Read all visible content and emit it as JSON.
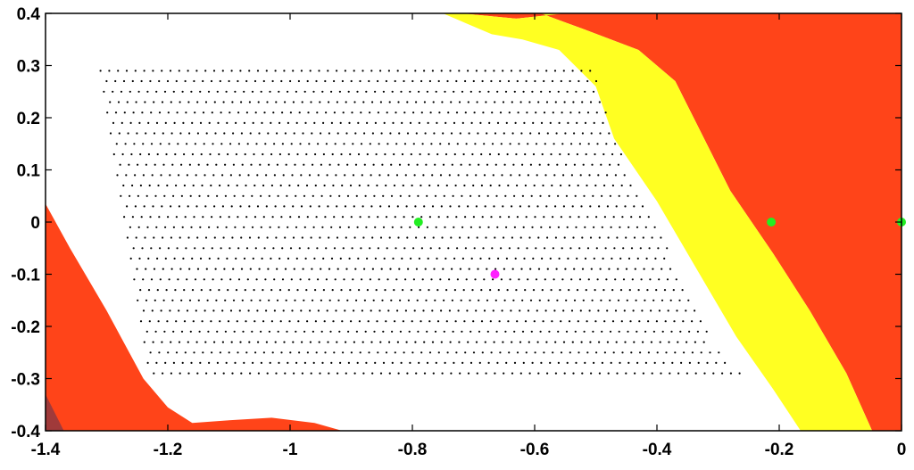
{
  "chart_data": {
    "type": "scatter",
    "title": "",
    "xlabel": "",
    "ylabel": "",
    "xlim": [
      -1.4,
      0
    ],
    "ylim": [
      -0.4,
      0.4
    ],
    "xticks": [
      -1.4,
      -1.2,
      -1,
      -0.8,
      -0.6,
      -0.4,
      -0.2,
      0
    ],
    "xtick_labels": [
      "-1.4",
      "-1.2",
      "-1",
      "-0.8",
      "-0.6",
      "-0.4",
      "-0.2",
      "0"
    ],
    "yticks": [
      0.4,
      0.3,
      0.2,
      0.1,
      0,
      -0.1,
      -0.2,
      -0.3,
      -0.4
    ],
    "ytick_labels": [
      "0.4",
      "0.3",
      "0.2",
      "0.1",
      "0",
      "-0.1",
      "-0.2",
      "-0.3",
      "-0.4"
    ],
    "grid": false,
    "regions": [
      {
        "color": "#ff4419",
        "polygon": [
          [
            -0.72,
            0.4
          ],
          [
            -0.63,
            0.39
          ],
          [
            -0.55,
            0.4
          ],
          [
            -0.6,
            0.4
          ]
        ]
      },
      {
        "color": "#ff4419",
        "polygon": [
          [
            -0.59,
            0.4
          ],
          [
            0,
            0.4
          ],
          [
            0,
            -0.4
          ],
          [
            -0.048,
            -0.4
          ],
          [
            -0.09,
            -0.29
          ],
          [
            -0.15,
            -0.17
          ],
          [
            -0.21,
            -0.06
          ],
          [
            -0.28,
            0.06
          ],
          [
            -0.34,
            0.2
          ],
          [
            -0.37,
            0.27
          ],
          [
            -0.43,
            0.33
          ],
          [
            -0.52,
            0.37
          ]
        ]
      },
      {
        "color": "#ffff22",
        "polygon": [
          [
            -0.75,
            0.4
          ],
          [
            -0.72,
            0.4
          ],
          [
            -0.63,
            0.39
          ],
          [
            -0.55,
            0.4
          ],
          [
            -0.59,
            0.4
          ],
          [
            -0.52,
            0.37
          ],
          [
            -0.43,
            0.33
          ],
          [
            -0.37,
            0.27
          ],
          [
            -0.34,
            0.2
          ],
          [
            -0.28,
            0.06
          ],
          [
            -0.21,
            -0.06
          ],
          [
            -0.15,
            -0.17
          ],
          [
            -0.09,
            -0.29
          ],
          [
            -0.048,
            -0.4
          ],
          [
            -0.165,
            -0.4
          ],
          [
            -0.21,
            -0.32
          ],
          [
            -0.27,
            -0.22
          ],
          [
            -0.33,
            -0.1
          ],
          [
            -0.4,
            0.04
          ],
          [
            -0.47,
            0.16
          ],
          [
            -0.5,
            0.26
          ],
          [
            -0.56,
            0.33
          ],
          [
            -0.62,
            0.35
          ],
          [
            -0.67,
            0.36
          ],
          [
            -0.71,
            0.38
          ]
        ]
      },
      {
        "color": "#ff4419",
        "polygon": [
          [
            -1.4,
            0.035
          ],
          [
            -1.36,
            -0.05
          ],
          [
            -1.3,
            -0.17
          ],
          [
            -1.24,
            -0.3
          ],
          [
            -1.2,
            -0.355
          ],
          [
            -1.16,
            -0.385
          ],
          [
            -1.1,
            -0.38
          ],
          [
            -1.03,
            -0.375
          ],
          [
            -0.96,
            -0.385
          ],
          [
            -0.915,
            -0.4
          ],
          [
            -1.4,
            -0.4
          ]
        ]
      }
    ],
    "corner_fill": {
      "color": "#a03a3a",
      "points": [
        [
          -1.4,
          -0.4
        ],
        [
          -1.4,
          -0.33
        ],
        [
          -1.37,
          -0.4
        ]
      ]
    },
    "grid_points": {
      "color": "#000000",
      "rows": [
        0.29,
        0.27,
        0.25,
        0.23,
        0.21,
        0.19,
        0.17,
        0.15,
        0.13,
        0.11,
        0.09,
        0.07,
        0.05,
        0.03,
        0.01,
        -0.01,
        -0.03,
        -0.05,
        -0.07,
        -0.09,
        -0.11,
        -0.13,
        -0.15,
        -0.17,
        -0.19,
        -0.21,
        -0.23,
        -0.25,
        -0.27,
        -0.29
      ],
      "left_edge": [
        [
          0.29,
          -1.31
        ],
        [
          -0.29,
          -1.23
        ]
      ],
      "right_edge": [
        [
          0.29,
          -0.5
        ],
        [
          0.2,
          -0.48
        ],
        [
          0.11,
          -0.45
        ],
        [
          0.02,
          -0.41
        ],
        [
          -0.08,
          -0.37
        ],
        [
          -0.17,
          -0.33
        ],
        [
          -0.23,
          -0.31
        ],
        [
          -0.29,
          -0.26
        ]
      ],
      "spacing": 0.0143
    },
    "series": [
      {
        "color": "#22ee22",
        "x": [
          -0.79,
          -0.213,
          0
        ],
        "y": [
          0,
          0,
          0
        ]
      },
      {
        "color": "#ff22ff",
        "x": [
          -0.665
        ],
        "y": [
          -0.1
        ]
      }
    ]
  }
}
